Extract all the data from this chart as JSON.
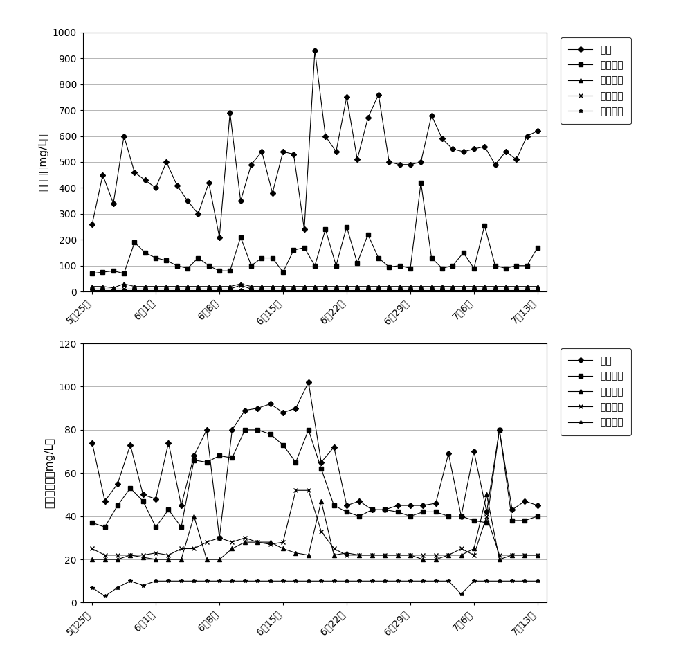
{
  "x_labels": [
    "5月25日",
    "6月1日",
    "6月8日",
    "6月15日",
    "6月22日",
    "6月29日",
    "7月6日",
    "7月13日"
  ],
  "chart1": {
    "ylabel": "油含量（mg/L）",
    "ylim": [
      0,
      1000
    ],
    "yticks": [
      0,
      100,
      200,
      300,
      400,
      500,
      600,
      700,
      800,
      900,
      1000
    ],
    "series": {
      "来水": [
        260,
        450,
        340,
        600,
        460,
        430,
        400,
        500,
        410,
        350,
        300,
        420,
        210,
        690,
        350,
        490,
        540,
        380,
        540,
        530,
        240,
        930,
        600,
        540,
        750,
        510,
        670,
        760,
        500,
        490,
        490,
        500,
        680,
        590,
        550,
        540,
        550,
        560,
        490,
        540,
        510,
        600,
        620
      ],
      "气浮出水": [
        70,
        75,
        80,
        70,
        190,
        150,
        130,
        120,
        100,
        90,
        130,
        100,
        80,
        80,
        210,
        100,
        130,
        130,
        75,
        160,
        170,
        100,
        240,
        100,
        250,
        110,
        220,
        130,
        95,
        100,
        90,
        420,
        130,
        90,
        100,
        150,
        90,
        255,
        100,
        90,
        100,
        100,
        170
      ],
      "一级生化": [
        20,
        20,
        15,
        30,
        20,
        20,
        20,
        20,
        20,
        20,
        20,
        20,
        20,
        20,
        30,
        20,
        20,
        20,
        20,
        20,
        20,
        20,
        20,
        20,
        20,
        20,
        20,
        20,
        20,
        20,
        20,
        20,
        20,
        20,
        20,
        20,
        20,
        20,
        20,
        20,
        20,
        20,
        20
      ],
      "二级生化": [
        10,
        10,
        10,
        10,
        10,
        10,
        10,
        10,
        10,
        10,
        10,
        10,
        10,
        10,
        25,
        10,
        10,
        10,
        10,
        10,
        10,
        10,
        10,
        10,
        10,
        10,
        10,
        10,
        10,
        10,
        10,
        10,
        10,
        10,
        10,
        10,
        10,
        10,
        10,
        10,
        10,
        10,
        10
      ],
      "沙滤出水": [
        5,
        5,
        5,
        5,
        5,
        5,
        5,
        5,
        5,
        5,
        5,
        5,
        5,
        5,
        5,
        5,
        5,
        5,
        5,
        5,
        5,
        5,
        5,
        5,
        5,
        5,
        5,
        5,
        5,
        5,
        5,
        5,
        5,
        5,
        5,
        5,
        5,
        5,
        5,
        5,
        5,
        5,
        5
      ]
    }
  },
  "chart2": {
    "ylabel": "悬浮物浓度（mg/L）",
    "ylim": [
      0,
      120
    ],
    "yticks": [
      0,
      20,
      40,
      60,
      80,
      100,
      120
    ],
    "series": {
      "来水": [
        74,
        47,
        55,
        73,
        50,
        48,
        74,
        45,
        68,
        80,
        30,
        80,
        89,
        90,
        92,
        88,
        90,
        102,
        65,
        72,
        45,
        47,
        43,
        43,
        45,
        45,
        45,
        46,
        69,
        40,
        70,
        42,
        80,
        43,
        47,
        45
      ],
      "气浮出水": [
        37,
        35,
        45,
        53,
        47,
        35,
        43,
        35,
        66,
        65,
        68,
        67,
        80,
        80,
        78,
        73,
        65,
        80,
        62,
        45,
        42,
        40,
        43,
        43,
        42,
        40,
        42,
        42,
        40,
        40,
        38,
        37,
        80,
        38,
        38,
        40
      ],
      "一级生化": [
        20,
        20,
        20,
        22,
        21,
        20,
        20,
        20,
        40,
        20,
        20,
        25,
        28,
        28,
        28,
        25,
        23,
        22,
        47,
        22,
        23,
        22,
        22,
        22,
        22,
        22,
        20,
        20,
        22,
        22,
        25,
        50,
        20,
        22,
        22,
        22
      ],
      "二级生化": [
        25,
        22,
        22,
        22,
        22,
        23,
        22,
        25,
        25,
        28,
        30,
        28,
        30,
        28,
        27,
        28,
        52,
        52,
        33,
        25,
        22,
        22,
        22,
        22,
        22,
        22,
        22,
        22,
        22,
        25,
        22,
        40,
        22,
        22,
        22,
        22
      ],
      "沙滤出水": [
        7,
        3,
        7,
        10,
        8,
        10,
        10,
        10,
        10,
        10,
        10,
        10,
        10,
        10,
        10,
        10,
        10,
        10,
        10,
        10,
        10,
        10,
        10,
        10,
        10,
        10,
        10,
        10,
        10,
        4,
        10,
        10,
        10,
        10,
        10,
        10
      ]
    }
  },
  "legend_labels": [
    "来水",
    "气浮出水",
    "一级生化",
    "二级生化",
    "沙滤出水"
  ],
  "markers": [
    "D",
    "s",
    "^",
    "x",
    "*"
  ],
  "line_color": "#000000",
  "background_color": "#ffffff",
  "grid_color": "#aaaaaa"
}
